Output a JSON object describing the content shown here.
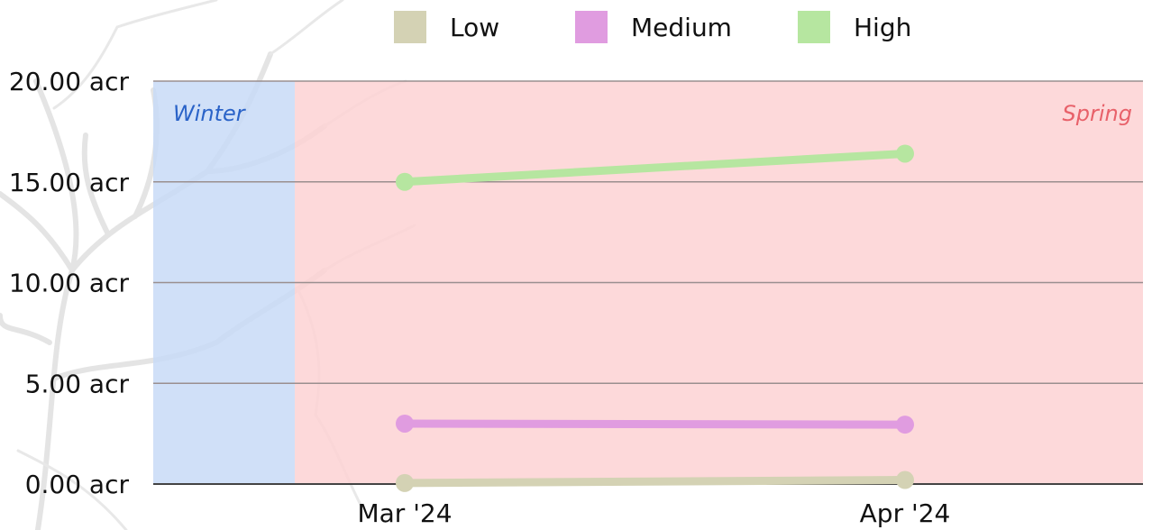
{
  "chart_data": {
    "type": "line",
    "title": "",
    "xlabel": "",
    "ylabel": "",
    "x": [
      "Mar '24",
      "Apr '24"
    ],
    "y_ticks": [
      0,
      5,
      10,
      15,
      20
    ],
    "y_tick_labels": [
      "0.00 acr",
      "5.00 acr",
      "10.00 acr",
      "15.00 acr",
      "20.00 acr"
    ],
    "ylim": [
      0,
      20
    ],
    "grid": true,
    "legend": "top-center",
    "series": [
      {
        "name": "Low",
        "color": "#d4d2b4",
        "values": [
          0.05,
          0.2
        ]
      },
      {
        "name": "Medium",
        "color": "#e09ce0",
        "values": [
          3.0,
          2.95
        ]
      },
      {
        "name": "High",
        "color": "#b6e6a0",
        "values": [
          15.0,
          16.4
        ]
      }
    ],
    "bands": [
      {
        "label": "Winter",
        "start": "",
        "end": "Mar '24",
        "color": "#c8daf7",
        "text_color": "#2a63c8"
      },
      {
        "label": "Spring",
        "start": "Mar '24",
        "end": "",
        "color": "#fdd2d3",
        "text_color": "#e8616a"
      }
    ],
    "background_image": "bare-tree-silhouette"
  }
}
